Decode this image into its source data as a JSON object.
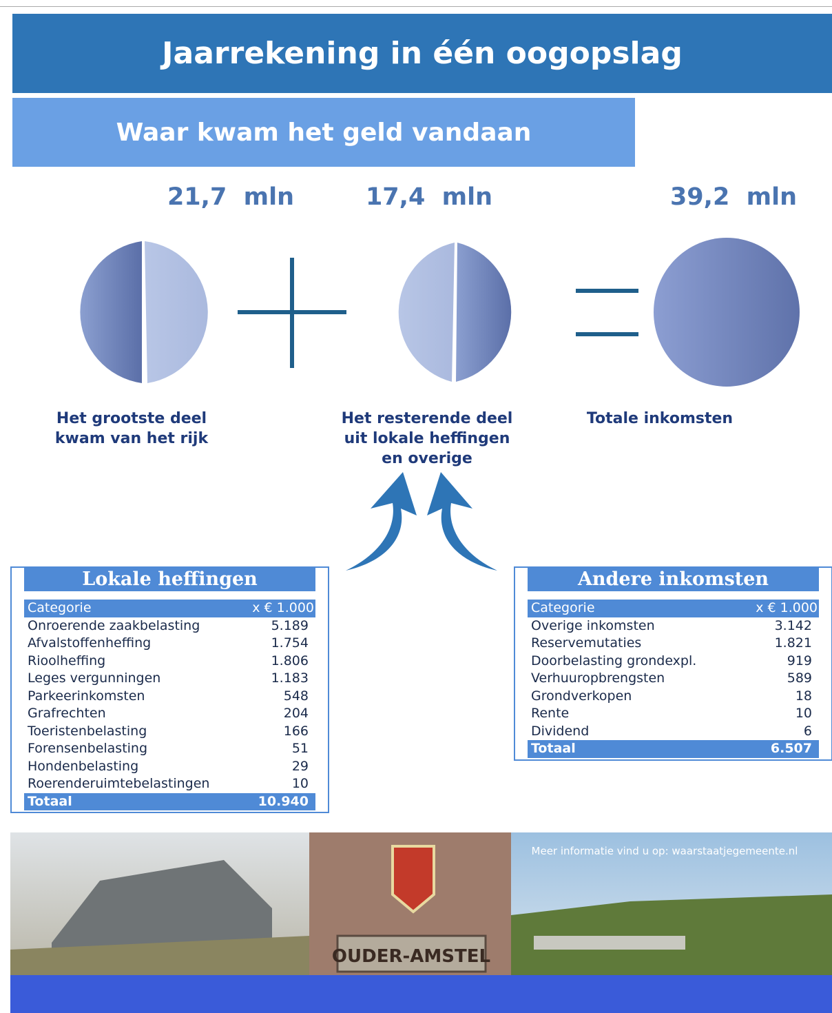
{
  "header": {
    "title": "Jaarrekening in één oogopslag",
    "subtitle": "Waar kwam het geld vandaan"
  },
  "amounts": [
    {
      "amount": "21,7",
      "unit": "mln",
      "label": [
        "Het grootste deel",
        "kwam van het rijk"
      ]
    },
    {
      "amount": "17,4",
      "unit": "mln",
      "label": [
        "Het resterende deel",
        "uit lokale heffingen",
        "en overige"
      ]
    },
    {
      "amount": "39,2",
      "unit": "mln",
      "label": [
        "Totale inkomsten"
      ]
    }
  ],
  "tables": [
    {
      "title": "Lokale heffingen",
      "columns": [
        "Categorie",
        "x € 1.000"
      ],
      "rows": [
        [
          "Onroerende zaakbelasting",
          "5.189"
        ],
        [
          "Afvalstoffenheffing",
          "1.754"
        ],
        [
          "Rioolheffing",
          "1.806"
        ],
        [
          "Leges vergunningen",
          "1.183"
        ],
        [
          "Parkeerinkomsten",
          "548"
        ],
        [
          "Grafrechten",
          "204"
        ],
        [
          "Toeristenbelasting",
          "166"
        ],
        [
          "Forensenbelasting",
          "51"
        ],
        [
          "Hondenbelasting",
          "29"
        ],
        [
          "Roerenderuimtebelastingen",
          "10"
        ]
      ],
      "total": [
        "Totaal",
        "10.940"
      ]
    },
    {
      "title": "Andere inkomsten",
      "columns": [
        "Categorie",
        "x € 1.000"
      ],
      "rows": [
        [
          "Overige inkomsten",
          "3.142"
        ],
        [
          "Reservemutaties",
          "1.821"
        ],
        [
          "Doorbelasting grondexpl.",
          "919"
        ],
        [
          "Verhuuropbrengsten",
          "589"
        ],
        [
          "Grondverkopen",
          "18"
        ],
        [
          "Rente",
          "10"
        ],
        [
          "Dividend",
          "6"
        ]
      ],
      "total": [
        "Totaal",
        "6.507"
      ]
    }
  ],
  "photo": {
    "caption": "Meer informatie vind u op: waarstaatjegemeente.nl",
    "sign": "OUDER-AMSTEL"
  }
}
